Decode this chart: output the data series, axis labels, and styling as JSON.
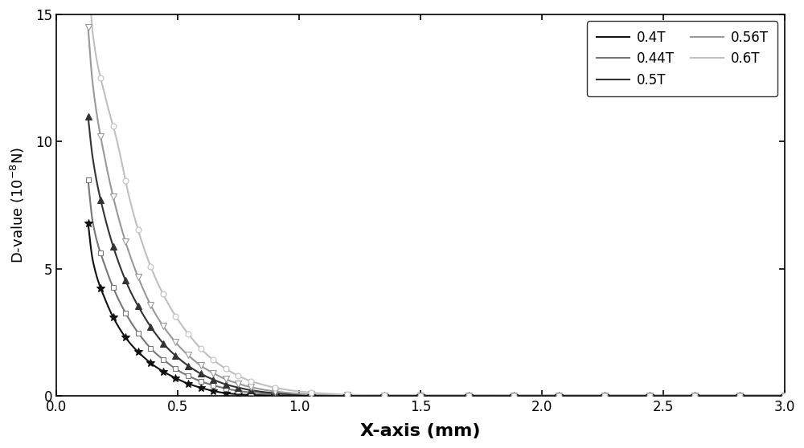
{
  "xlabel": "X-axis (mm)",
  "ylabel": "D-value (10$^{-8}$N)",
  "xlim": [
    0.0,
    3.0
  ],
  "ylim": [
    0,
    15
  ],
  "yticks": [
    0,
    5,
    10,
    15
  ],
  "xticks": [
    0.0,
    0.5,
    1.0,
    1.5,
    2.0,
    2.5,
    3.0
  ],
  "series": [
    {
      "label": "0.4T",
      "color": "#111111",
      "marker": "*",
      "markersize": 7,
      "lw": 1.5,
      "mfc": "#111111",
      "A": 0.118,
      "b": 5.8,
      "n": 2.0
    },
    {
      "label": "0.44T",
      "color": "#777777",
      "marker": "s",
      "markersize": 5,
      "lw": 1.5,
      "mfc": "white",
      "A": 0.165,
      "b": 5.2,
      "n": 2.0
    },
    {
      "label": "0.5T",
      "color": "#333333",
      "marker": "^",
      "markersize": 6,
      "lw": 1.5,
      "mfc": "#333333",
      "A": 0.235,
      "b": 4.8,
      "n": 2.0
    },
    {
      "label": "0.56T",
      "color": "#999999",
      "marker": "v",
      "markersize": 6,
      "lw": 1.5,
      "mfc": "white",
      "A": 0.32,
      "b": 4.3,
      "n": 2.0
    },
    {
      "label": "0.6T",
      "color": "#bbbbbb",
      "marker": "o",
      "markersize": 5,
      "lw": 1.5,
      "mfc": "white",
      "A": 0.6,
      "b": 3.6,
      "n": 2.0
    }
  ]
}
